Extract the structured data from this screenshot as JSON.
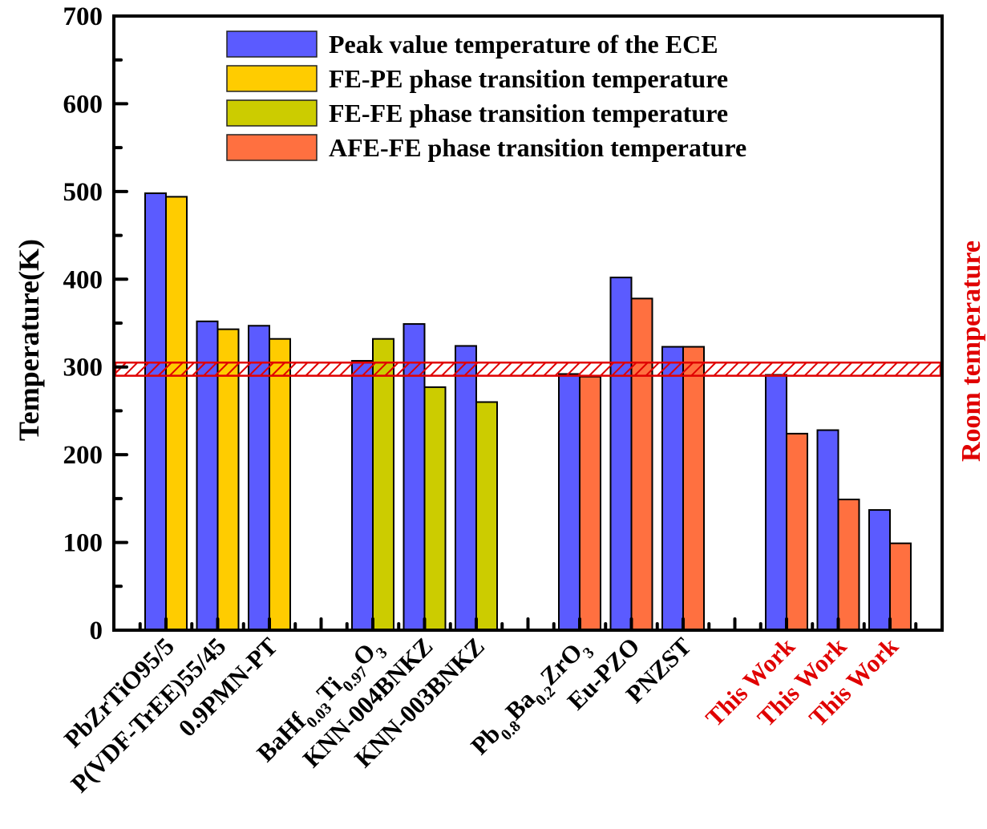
{
  "chart_data": {
    "type": "bar",
    "title": "",
    "xlabel": "",
    "ylabel": "Temperature(K)",
    "ylim": [
      0,
      700
    ],
    "yticks": [
      0,
      100,
      200,
      300,
      400,
      500,
      600,
      700
    ],
    "grid": false,
    "legend_position": "top-center",
    "series": [
      {
        "name": "Peak value temperature of the ECE",
        "color": "#5B5BFF"
      },
      {
        "name": "FE-PE phase transition temperature",
        "color": "#FFCC00"
      },
      {
        "name": "FE-FE phase transition temperature",
        "color": "#CCCC00"
      },
      {
        "name": "AFE-FE phase transition temperature",
        "color": "#FF7040"
      }
    ],
    "categories": [
      {
        "label": "PbZrTiO95/5",
        "parts": [
          {
            "t": "PbZrTiO95/5",
            "sub": false
          }
        ],
        "peak": 498,
        "transition": 494,
        "transition_series": 1,
        "label_color": "#000000",
        "slot": 1
      },
      {
        "label": "P(VDF-TrEE)55/45",
        "parts": [
          {
            "t": "P(VDF-TrEE)55/45",
            "sub": false
          }
        ],
        "peak": 352,
        "transition": 343,
        "transition_series": 1,
        "label_color": "#000000",
        "slot": 2
      },
      {
        "label": "0.9PMN-PT",
        "parts": [
          {
            "t": "0.9PMN-PT",
            "sub": false
          }
        ],
        "peak": 347,
        "transition": 332,
        "transition_series": 1,
        "label_color": "#000000",
        "slot": 3
      },
      {
        "label": "BaHf0.03Ti0.97O3",
        "parts": [
          {
            "t": "BaHf",
            "sub": false
          },
          {
            "t": "0.03",
            "sub": true
          },
          {
            "t": "Ti",
            "sub": false
          },
          {
            "t": "0.97",
            "sub": true
          },
          {
            "t": "O",
            "sub": false
          },
          {
            "t": "3",
            "sub": true
          }
        ],
        "peak": 307,
        "transition": 332,
        "transition_series": 2,
        "label_color": "#000000",
        "slot": 5
      },
      {
        "label": "KNN-004BNKZ",
        "parts": [
          {
            "t": "KNN-004BNKZ",
            "sub": false
          }
        ],
        "peak": 349,
        "transition": 277,
        "transition_series": 2,
        "label_color": "#000000",
        "slot": 6
      },
      {
        "label": "KNN-003BNKZ",
        "parts": [
          {
            "t": "KNN-003BNKZ",
            "sub": false
          }
        ],
        "peak": 324,
        "transition": 260,
        "transition_series": 2,
        "label_color": "#000000",
        "slot": 7
      },
      {
        "label": "Pb0.8Ba0.2ZrO3",
        "parts": [
          {
            "t": "Pb",
            "sub": false
          },
          {
            "t": "0.8",
            "sub": true
          },
          {
            "t": "Ba",
            "sub": false
          },
          {
            "t": "0.2",
            "sub": true
          },
          {
            "t": "ZrO",
            "sub": false
          },
          {
            "t": "3",
            "sub": true
          }
        ],
        "peak": 292,
        "transition": 289,
        "transition_series": 3,
        "label_color": "#000000",
        "slot": 9
      },
      {
        "label": "Eu-PZO",
        "parts": [
          {
            "t": "Eu-PZO",
            "sub": false
          }
        ],
        "peak": 402,
        "transition": 378,
        "transition_series": 3,
        "label_color": "#000000",
        "slot": 10
      },
      {
        "label": "PNZST",
        "parts": [
          {
            "t": "PNZST",
            "sub": false
          }
        ],
        "peak": 323,
        "transition": 323,
        "transition_series": 3,
        "label_color": "#000000",
        "slot": 11
      },
      {
        "label": "This Work",
        "parts": [
          {
            "t": "This Work",
            "sub": false
          }
        ],
        "peak": 291,
        "transition": 224,
        "transition_series": 3,
        "label_color": "#E00000",
        "slot": 13
      },
      {
        "label": "This Work",
        "parts": [
          {
            "t": "This Work",
            "sub": false
          }
        ],
        "peak": 228,
        "transition": 149,
        "transition_series": 3,
        "label_color": "#E00000",
        "slot": 14
      },
      {
        "label": "This Work",
        "parts": [
          {
            "t": "This Work",
            "sub": false
          }
        ],
        "peak": 137,
        "transition": 99,
        "transition_series": 3,
        "label_color": "#E00000",
        "slot": 15
      }
    ],
    "room_temperature_band": {
      "label": "Room temperature",
      "from": 290,
      "to": 305,
      "color": "#E00000"
    }
  }
}
